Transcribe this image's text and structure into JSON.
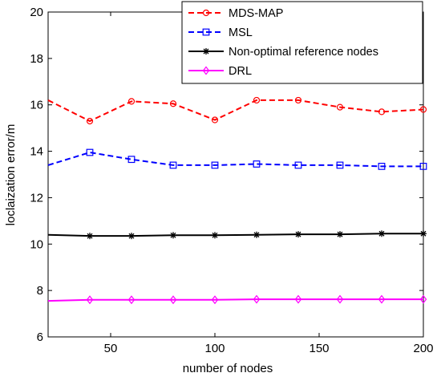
{
  "chart_data": {
    "type": "line",
    "xlabel": "number of nodes",
    "ylabel": "loclaization error/m",
    "xlim": [
      20,
      200
    ],
    "ylim": [
      6,
      20
    ],
    "xticks": [
      50,
      100,
      150,
      200
    ],
    "yticks": [
      6,
      8,
      10,
      12,
      14,
      16,
      18,
      20
    ],
    "grid": false,
    "legend_position": "top-right",
    "series": [
      {
        "name": "MDS-MAP",
        "color": "#ff0000",
        "line_style": "dashed",
        "marker": "circle",
        "x": [
          20,
          40,
          60,
          80,
          100,
          120,
          140,
          160,
          180,
          200
        ],
        "y": [
          16.2,
          15.3,
          16.15,
          16.05,
          15.35,
          16.2,
          16.2,
          15.9,
          15.7,
          15.8
        ]
      },
      {
        "name": "MSL",
        "color": "#0000ff",
        "line_style": "dashed",
        "marker": "square",
        "x": [
          20,
          40,
          60,
          80,
          100,
          120,
          140,
          160,
          180,
          200
        ],
        "y": [
          13.4,
          13.95,
          13.65,
          13.4,
          13.4,
          13.45,
          13.4,
          13.4,
          13.35,
          13.35
        ]
      },
      {
        "name": "Non-optimal reference nodes",
        "color": "#000000",
        "line_style": "solid",
        "marker": "star",
        "x": [
          20,
          40,
          60,
          80,
          100,
          120,
          140,
          160,
          180,
          200
        ],
        "y": [
          10.4,
          10.35,
          10.35,
          10.38,
          10.38,
          10.4,
          10.42,
          10.42,
          10.45,
          10.45
        ]
      },
      {
        "name": "DRL",
        "color": "#ff00ff",
        "line_style": "solid",
        "marker": "diamond",
        "x": [
          20,
          40,
          60,
          80,
          100,
          120,
          140,
          160,
          180,
          200
        ],
        "y": [
          7.55,
          7.6,
          7.6,
          7.6,
          7.6,
          7.62,
          7.62,
          7.62,
          7.62,
          7.62
        ]
      }
    ]
  }
}
